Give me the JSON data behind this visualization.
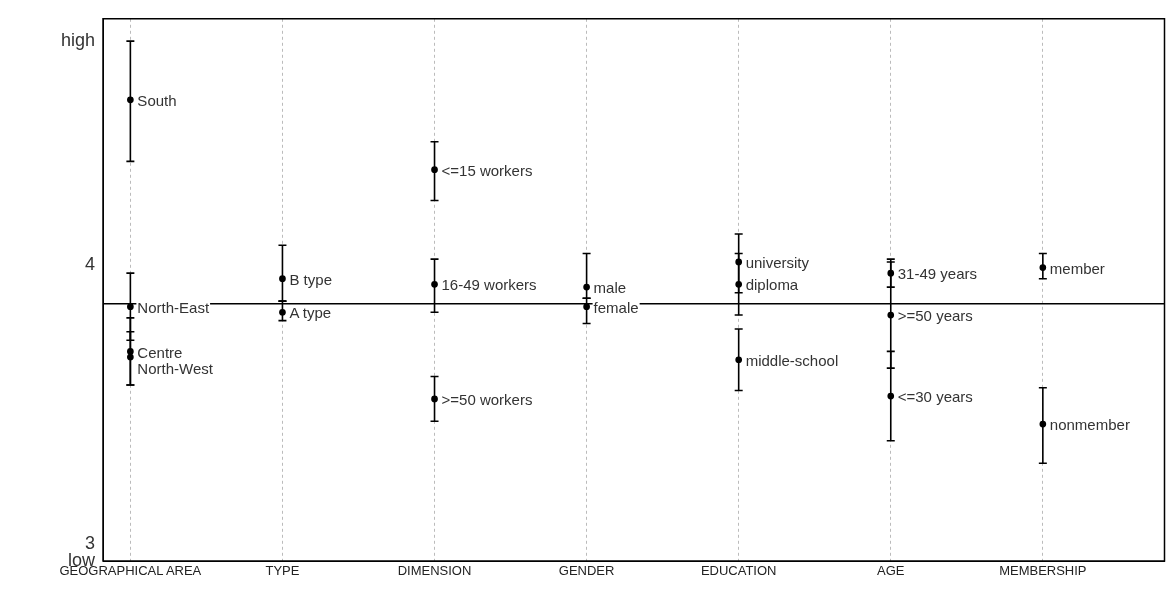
{
  "chart_data": {
    "type": "scatter",
    "categories": [
      "GEOGRAPHICAL AREA",
      "TYPE",
      "DIMENSION",
      "GENDER",
      "EDUCATION",
      "AGE",
      "MEMBERSHIP"
    ],
    "series": [
      {
        "color": "#000000",
        "x": [
          "GEOGRAPHICAL AREA",
          "GEOGRAPHICAL AREA",
          "GEOGRAPHICAL AREA",
          "GEOGRAPHICAL AREA",
          "TYPE",
          "TYPE",
          "DIMENSION",
          "DIMENSION",
          "DIMENSION",
          "GENDER",
          "GENDER",
          "EDUCATION",
          "EDUCATION",
          "EDUCATION",
          "AGE",
          "AGE",
          "AGE",
          "MEMBERSHIP",
          "MEMBERSHIP"
        ],
        "values": [
          4.59,
          3.85,
          3.69,
          3.67,
          3.95,
          3.83,
          4.34,
          3.93,
          3.52,
          3.92,
          3.85,
          4.01,
          3.93,
          3.66,
          3.97,
          3.82,
          3.53,
          3.99,
          3.43
        ],
        "errors": [
          [
            4.37,
            4.8
          ],
          [
            3.73,
            3.97
          ],
          [
            3.57,
            3.81
          ],
          [
            3.57,
            3.76
          ],
          [
            3.87,
            4.07
          ],
          [
            3.8,
            3.87
          ],
          [
            4.23,
            4.44
          ],
          [
            3.83,
            4.02
          ],
          [
            3.44,
            3.6
          ],
          [
            3.88,
            4.04
          ],
          [
            3.79,
            3.88
          ],
          [
            3.9,
            4.11
          ],
          [
            3.82,
            4.04
          ],
          [
            3.55,
            3.77
          ],
          [
            3.92,
            4.02
          ],
          [
            3.63,
            4.01
          ],
          [
            3.37,
            3.69
          ],
          [
            3.95,
            4.04
          ],
          [
            3.29,
            3.56
          ]
        ]
      }
    ],
    "annotations": [
      {
        "text": "South",
        "x": "GEOGRAPHICAL AREA",
        "y": 4.59
      },
      {
        "text": "North-East",
        "x": "GEOGRAPHICAL AREA",
        "y": 3.85
      },
      {
        "text": "Centre",
        "x": "GEOGRAPHICAL AREA",
        "y": 3.69
      },
      {
        "text": "North-West",
        "x": "GEOGRAPHICAL AREA",
        "y": 3.67
      },
      {
        "text": "B type",
        "x": "TYPE",
        "y": 3.95
      },
      {
        "text": "A type",
        "x": "TYPE",
        "y": 3.83
      },
      {
        "text": "<=15 workers",
        "x": "DIMENSION",
        "y": 4.34
      },
      {
        "text": "16-49 workers",
        "x": "DIMENSION",
        "y": 3.93
      },
      {
        "text": ">=50 workers",
        "x": "DIMENSION",
        "y": 3.52
      },
      {
        "text": "male",
        "x": "GENDER",
        "y": 3.92
      },
      {
        "text": "female",
        "x": "GENDER",
        "y": 3.85
      },
      {
        "text": "university",
        "x": "EDUCATION",
        "y": 4.01
      },
      {
        "text": "diploma",
        "x": "EDUCATION",
        "y": 3.93
      },
      {
        "text": "middle-school",
        "x": "EDUCATION",
        "y": 3.66
      },
      {
        "text": "31-49 years",
        "x": "AGE",
        "y": 3.97
      },
      {
        "text": ">=50 years",
        "x": "AGE",
        "y": 3.82
      },
      {
        "text": "<=30 years",
        "x": "AGE",
        "y": 3.53
      },
      {
        "text": "member",
        "x": "MEMBERSHIP",
        "y": 3.99
      },
      {
        "text": "nonmember",
        "x": "MEMBERSHIP",
        "y": 3.43
      }
    ],
    "ref_lines": [
      {
        "axis": "y",
        "value": 3.86,
        "color": "#000000",
        "line_style": "solid"
      }
    ],
    "ylim": [
      2.94,
      4.88
    ],
    "yticks": [
      {
        "value": 2.94,
        "label": "low"
      },
      3,
      4,
      {
        "value": 4.8,
        "label": "high"
      }
    ],
    "grid": "x",
    "legend": false,
    "marker": "circle"
  }
}
